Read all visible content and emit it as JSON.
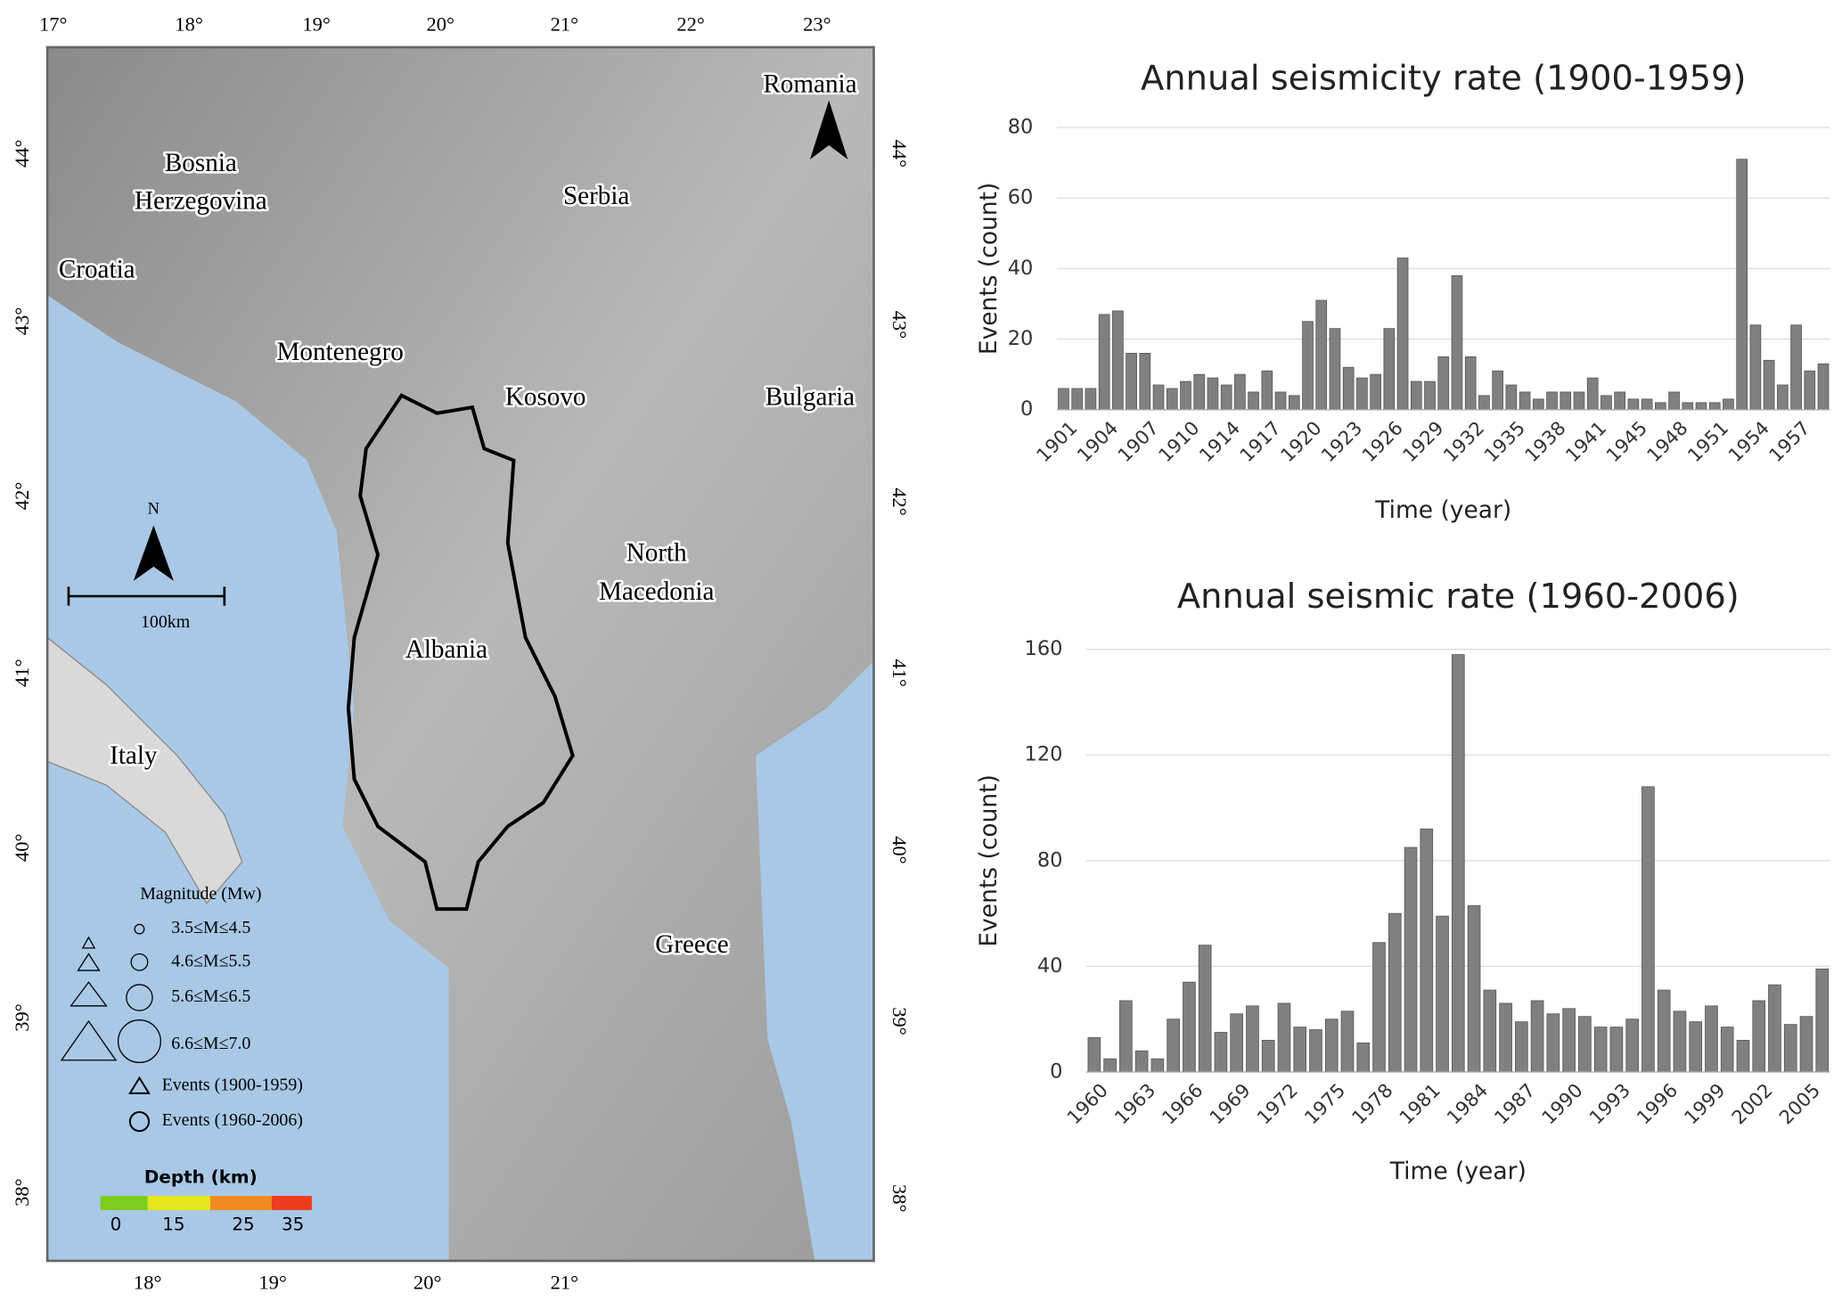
{
  "chart_data": [
    {
      "type": "bar",
      "title": "Annual seismicity rate (1900-1959)",
      "x_label": "Time (year)",
      "y_label": "Events (count)",
      "categories": [
        "1901",
        null,
        null,
        "1904",
        null,
        null,
        "1907",
        null,
        null,
        "1910",
        null,
        null,
        "1914",
        null,
        null,
        "1917",
        null,
        null,
        "1920",
        null,
        null,
        "1923",
        null,
        null,
        "1926",
        null,
        null,
        "1929",
        null,
        null,
        "1932",
        null,
        null,
        "1935",
        null,
        null,
        "1938",
        null,
        null,
        "1941",
        null,
        null,
        "1945",
        null,
        null,
        "1948",
        null,
        null,
        "1951",
        null,
        null,
        "1954",
        null,
        null,
        "1957",
        null,
        null
      ],
      "values": [
        6,
        6,
        6,
        27,
        28,
        16,
        16,
        7,
        6,
        8,
        10,
        9,
        7,
        10,
        5,
        11,
        5,
        4,
        25,
        31,
        23,
        12,
        9,
        10,
        23,
        43,
        8,
        8,
        15,
        38,
        15,
        4,
        11,
        7,
        5,
        3,
        5,
        5,
        5,
        9,
        4,
        5,
        3,
        3,
        2,
        5,
        2,
        2,
        2,
        3,
        71,
        24,
        14,
        7,
        24,
        11,
        13
      ],
      "color": "#808080",
      "ylim": [
        0,
        80
      ],
      "yticks": [
        0,
        20,
        40,
        60,
        80
      ],
      "grid": true
    },
    {
      "type": "bar",
      "title": "Annual seismic rate (1960-2006)",
      "x_label": "Time (year)",
      "y_label": "Events (count)",
      "categories": [
        "1960",
        null,
        null,
        "1963",
        null,
        null,
        "1966",
        null,
        null,
        "1969",
        null,
        null,
        "1972",
        null,
        null,
        "1975",
        null,
        null,
        "1978",
        null,
        null,
        "1981",
        null,
        null,
        "1984",
        null,
        null,
        "1987",
        null,
        null,
        "1990",
        null,
        null,
        "1993",
        null,
        null,
        "1996",
        null,
        null,
        "1999",
        null,
        null,
        "2002",
        null,
        null,
        "2005",
        null
      ],
      "values": [
        13,
        5,
        27,
        8,
        5,
        20,
        34,
        48,
        15,
        22,
        25,
        12,
        26,
        17,
        16,
        20,
        23,
        11,
        49,
        60,
        85,
        92,
        59,
        158,
        63,
        31,
        26,
        19,
        27,
        22,
        24,
        21,
        17,
        17,
        20,
        108,
        31,
        23,
        19,
        25,
        17,
        12,
        27,
        33,
        18,
        21,
        39
      ],
      "color": "#808080",
      "ylim": [
        0,
        160
      ],
      "yticks": [
        0,
        40,
        80,
        120,
        160
      ],
      "grid": true
    }
  ],
  "map": {
    "top_lon_labels": [
      "17°",
      "18°",
      "19°",
      "20°",
      "21°",
      "22°",
      "23°"
    ],
    "bottom_lon_labels": [
      "18°",
      "19°",
      "20°",
      "21°"
    ],
    "left_lat_labels": [
      "44°",
      "43°",
      "42°",
      "41°",
      "40°",
      "39°",
      "38°"
    ],
    "right_lat_labels": [
      "44°",
      "43°",
      "42°",
      "41°",
      "40°",
      "39°",
      "38°"
    ],
    "countries": [
      "Bosnia",
      "Herzegovina",
      "Croatia",
      "Montenegro",
      "Serbia",
      "Romania",
      "Kosovo",
      "Bulgaria",
      "North",
      "Macedonia",
      "Albania",
      "Italy",
      "Greece"
    ],
    "north": "N",
    "scale_bar": "100km",
    "legend": {
      "title": "Magnitude (Mw)",
      "magnitude": [
        "3.5≤M≤4.5",
        "4.6≤M≤5.5",
        "5.6≤M≤6.5",
        "6.6≤M≤7.0"
      ],
      "events": [
        "Events (1900-1959)",
        "Events (1960-2006)"
      ],
      "depth_title": "Depth (km)",
      "depth_ticks": [
        0,
        15,
        25,
        35
      ]
    }
  }
}
